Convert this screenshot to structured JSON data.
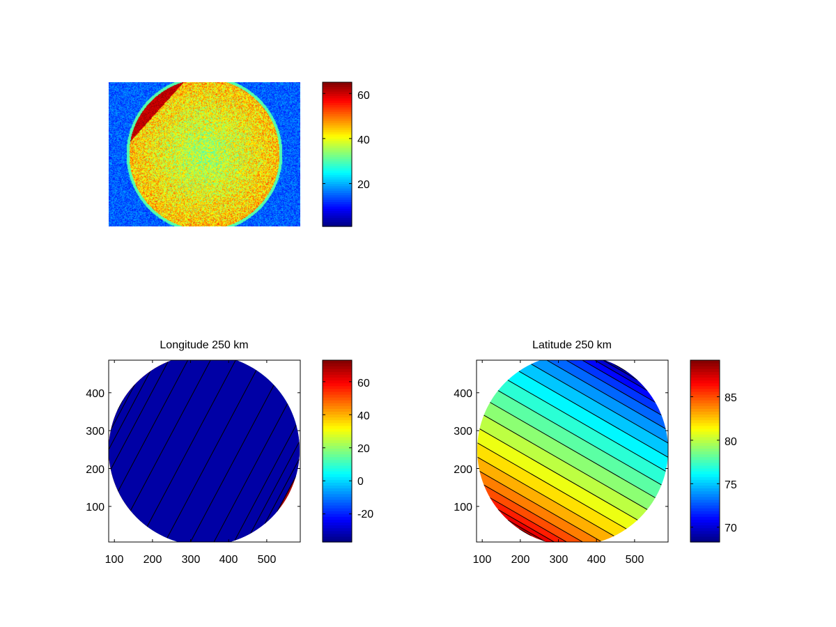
{
  "chart_data": [
    {
      "type": "heatmap",
      "title": "",
      "description_values": {
        "background": 15,
        "disk": 45,
        "bright_crescent": 58
      },
      "colormap": "jet",
      "clim": [
        1,
        65
      ],
      "colorbar_ticks": [
        "20",
        "40",
        "60"
      ],
      "colorbar_tick_values": [
        20,
        40,
        60
      ],
      "axes_visible": false
    },
    {
      "type": "heatmap",
      "subtype": "filled-contour",
      "title": "Longitude 250 km",
      "colormap": "jet",
      "xlim": [
        85,
        588
      ],
      "ylim": [
        6,
        486
      ],
      "x_ticks": [
        "100",
        "200",
        "300",
        "400",
        "500"
      ],
      "x_tick_values": [
        100,
        200,
        300,
        400,
        500
      ],
      "y_ticks": [
        "100",
        "200",
        "300",
        "400"
      ],
      "y_tick_values": [
        100,
        200,
        300,
        400
      ],
      "clim": [
        -37,
        73
      ],
      "colorbar_ticks": [
        "-20",
        "0",
        "20",
        "40",
        "60"
      ],
      "colorbar_tick_values": [
        -20,
        0,
        20,
        40,
        60
      ],
      "levels": [
        65,
        58,
        51,
        44,
        36,
        28,
        20,
        12,
        4,
        -4,
        -12,
        -18,
        -24,
        -30
      ]
    },
    {
      "type": "heatmap",
      "subtype": "filled-contour",
      "title": "Latitude 250 km",
      "colormap": "jet",
      "xlim": [
        85,
        588
      ],
      "ylim": [
        6,
        486
      ],
      "x_ticks": [
        "100",
        "200",
        "300",
        "400",
        "500"
      ],
      "x_tick_values": [
        100,
        200,
        300,
        400,
        500
      ],
      "y_ticks": [
        "100",
        "200",
        "300",
        "400"
      ],
      "y_tick_values": [
        100,
        200,
        300,
        400
      ],
      "clim": [
        68.3,
        89.2
      ],
      "colorbar_ticks": [
        "70",
        "75",
        "80",
        "85"
      ],
      "colorbar_tick_values": [
        70,
        75,
        80,
        85
      ],
      "levels": [
        68.5,
        69.5,
        70.5,
        71.5,
        72.5,
        73.5,
        74.5,
        75.5,
        76.5,
        77.5,
        78.5,
        79.5,
        80.5,
        81.5,
        82.5,
        83.5,
        84.5,
        85.5,
        86.5,
        87.5,
        88.5
      ]
    }
  ]
}
